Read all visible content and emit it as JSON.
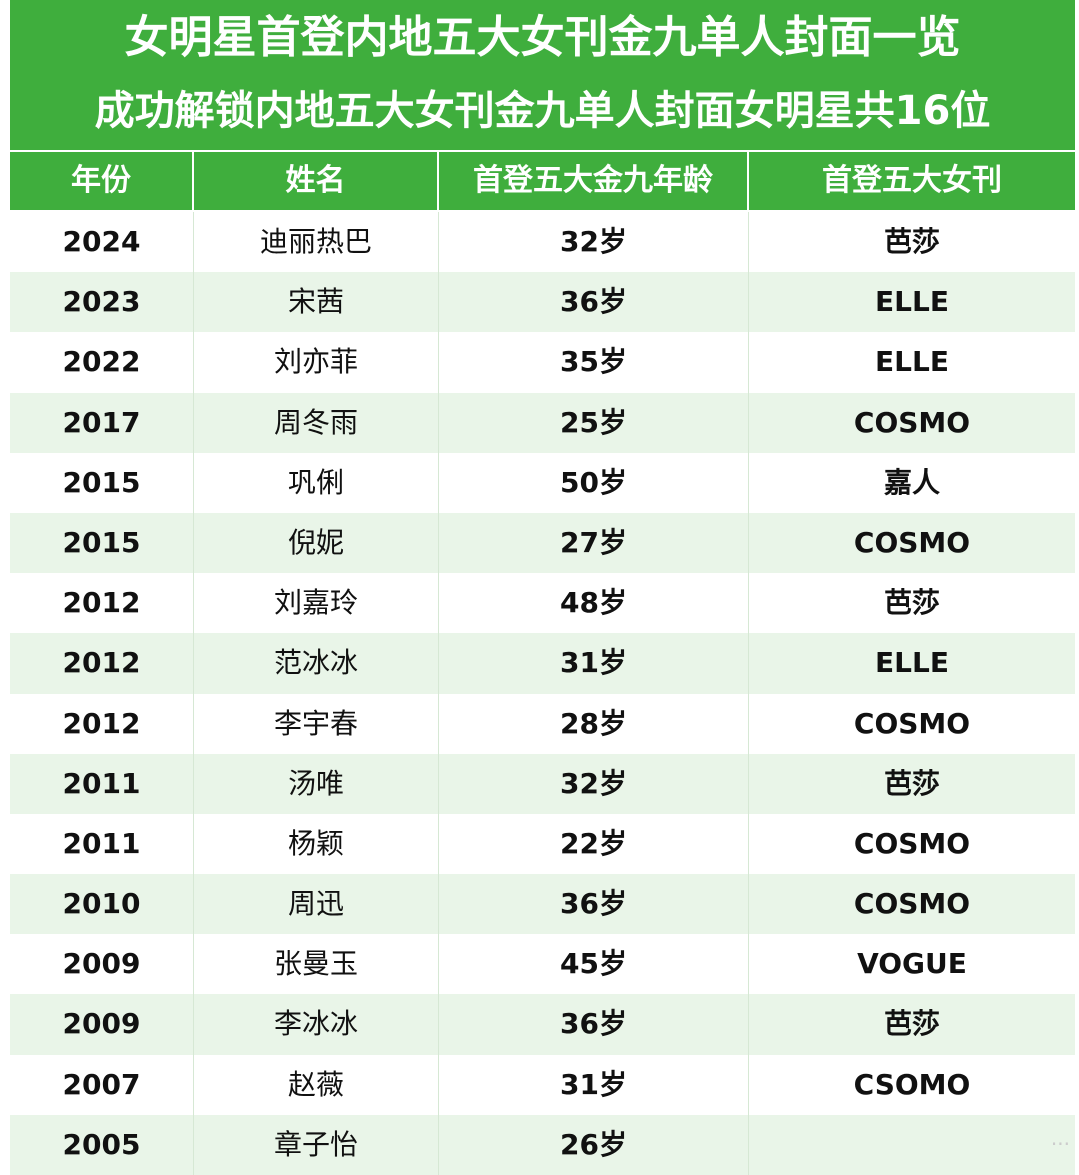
{
  "header": {
    "title": "女明星首登内地五大女刊金九单人封面一览",
    "subtitle": "成功解锁内地五大女刊金九单人封面女明星共16位"
  },
  "table": {
    "columns": [
      "年份",
      "姓名",
      "首登五大金九年龄",
      "首登五大女刊"
    ],
    "rows": [
      {
        "year": "2024",
        "name": "迪丽热巴",
        "age": "32岁",
        "magazine": "芭莎"
      },
      {
        "year": "2023",
        "name": "宋茜",
        "age": "36岁",
        "magazine": "ELLE"
      },
      {
        "year": "2022",
        "name": "刘亦菲",
        "age": "35岁",
        "magazine": "ELLE"
      },
      {
        "year": "2017",
        "name": "周冬雨",
        "age": "25岁",
        "magazine": "COSMO"
      },
      {
        "year": "2015",
        "name": "巩俐",
        "age": "50岁",
        "magazine": "嘉人"
      },
      {
        "year": "2015",
        "name": "倪妮",
        "age": "27岁",
        "magazine": "COSMO"
      },
      {
        "year": "2012",
        "name": "刘嘉玲",
        "age": "48岁",
        "magazine": "芭莎"
      },
      {
        "year": "2012",
        "name": "范冰冰",
        "age": "31岁",
        "magazine": "ELLE"
      },
      {
        "year": "2012",
        "name": "李宇春",
        "age": "28岁",
        "magazine": "COSMO"
      },
      {
        "year": "2011",
        "name": "汤唯",
        "age": "32岁",
        "magazine": "芭莎"
      },
      {
        "year": "2011",
        "name": "杨颖",
        "age": "22岁",
        "magazine": "COSMO"
      },
      {
        "year": "2010",
        "name": "周迅",
        "age": "36岁",
        "magazine": "COSMO"
      },
      {
        "year": "2009",
        "name": "张曼玉",
        "age": "45岁",
        "magazine": "VOGUE"
      },
      {
        "year": "2009",
        "name": "李冰冰",
        "age": "36岁",
        "magazine": "芭莎"
      },
      {
        "year": "2007",
        "name": "赵薇",
        "age": "31岁",
        "magazine": "CSOMO"
      },
      {
        "year": "2005",
        "name": "章子怡",
        "age": "26岁",
        "magazine": ""
      }
    ]
  },
  "colors": {
    "header_green": "#3fae3d",
    "row_alt": "#e9f5e8",
    "row_plain": "#ffffff"
  }
}
